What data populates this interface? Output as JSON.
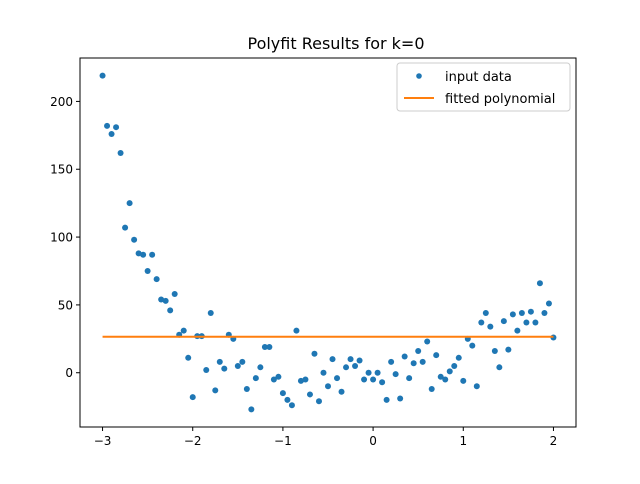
{
  "chart_data": {
    "type": "scatter",
    "title": "Polyfit Results for k=0",
    "xlabel": "",
    "ylabel": "",
    "xlim": [
      -3.25,
      2.25
    ],
    "ylim": [
      -40,
      232
    ],
    "xticks": [
      -3,
      -2,
      -1,
      0,
      1,
      2
    ],
    "yticks": [
      0,
      50,
      100,
      150,
      200
    ],
    "xtick_labels": [
      "−3",
      "−2",
      "−1",
      "0",
      "1",
      "2"
    ],
    "ytick_labels": [
      "0",
      "50",
      "100",
      "150",
      "200"
    ],
    "grid": false,
    "legend_position": "top-right",
    "series": [
      {
        "name": "input data",
        "kind": "scatter",
        "color": "#1f77b4",
        "x": [
          -3.0,
          -2.95,
          -2.9,
          -2.85,
          -2.8,
          -2.75,
          -2.7,
          -2.65,
          -2.6,
          -2.55,
          -2.5,
          -2.45,
          -2.4,
          -2.35,
          -2.3,
          -2.25,
          -2.2,
          -2.15,
          -2.1,
          -2.05,
          -2.0,
          -1.95,
          -1.9,
          -1.85,
          -1.8,
          -1.75,
          -1.7,
          -1.65,
          -1.6,
          -1.55,
          -1.5,
          -1.45,
          -1.4,
          -1.35,
          -1.3,
          -1.25,
          -1.2,
          -1.15,
          -1.1,
          -1.05,
          -1.0,
          -0.95,
          -0.9,
          -0.85,
          -0.8,
          -0.75,
          -0.7,
          -0.65,
          -0.6,
          -0.55,
          -0.5,
          -0.45,
          -0.4,
          -0.35,
          -0.3,
          -0.25,
          -0.2,
          -0.15,
          -0.1,
          -0.05,
          0.0,
          0.05,
          0.1,
          0.15,
          0.2,
          0.25,
          0.3,
          0.35,
          0.4,
          0.45,
          0.5,
          0.55,
          0.6,
          0.65,
          0.7,
          0.75,
          0.8,
          0.85,
          0.9,
          0.95,
          1.0,
          1.05,
          1.1,
          1.15,
          1.2,
          1.25,
          1.3,
          1.35,
          1.4,
          1.45,
          1.5,
          1.55,
          1.6,
          1.65,
          1.7,
          1.75,
          1.8,
          1.85,
          1.9,
          1.95,
          2.0
        ],
        "y": [
          219,
          182,
          176,
          181,
          162,
          107,
          125,
          98,
          88,
          87,
          75,
          87,
          69,
          54,
          53,
          46,
          58,
          28,
          31,
          11,
          -18,
          27,
          27,
          2,
          44,
          -13,
          8,
          3,
          28,
          25,
          5,
          8,
          -12,
          -27,
          -4,
          4,
          19,
          19,
          -5,
          -3,
          -15,
          -20,
          -24,
          31,
          -6,
          -5,
          -16,
          14,
          -21,
          0,
          -10,
          10,
          -4,
          -14,
          4,
          10,
          5,
          9,
          -5,
          0,
          -5,
          0,
          -7,
          -20,
          8,
          -1,
          -19,
          12,
          -4,
          7,
          16,
          8,
          23,
          -12,
          13,
          -3,
          -5,
          1,
          5,
          11,
          -6,
          25,
          20,
          -10,
          37,
          44,
          34,
          16,
          4,
          38,
          17,
          43,
          31,
          44,
          37,
          45,
          37,
          66,
          44,
          51,
          26
        ]
      },
      {
        "name": "fitted polynomial",
        "kind": "line",
        "color": "#ff7f0e",
        "x": [
          -3.0,
          2.0
        ],
        "y": [
          26.5,
          26.5
        ]
      }
    ]
  }
}
